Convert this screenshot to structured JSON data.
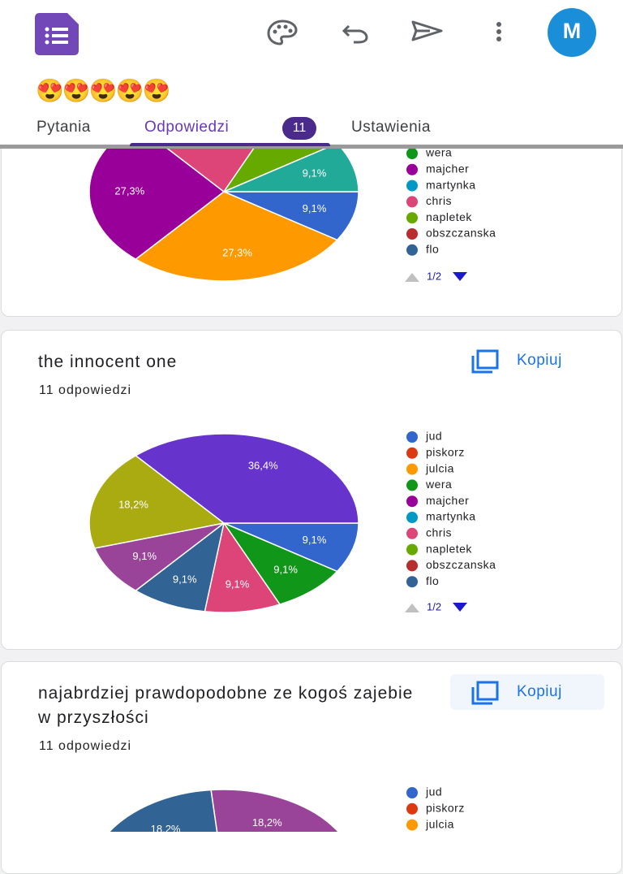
{
  "app": {
    "emoji_title": "😍😍😍😍😍",
    "avatar": "M"
  },
  "tabs": [
    {
      "label": "Pytania"
    },
    {
      "label": "Odpowiedzi",
      "badge": "11"
    },
    {
      "label": "Ustawienia"
    }
  ],
  "cards": [
    {
      "chart": {
        "type": "pie",
        "values": [
          9.1,
          27.3,
          27.3,
          18.2,
          9.1,
          9.1
        ],
        "value_labels": [
          "9,1%",
          "27,3%",
          "27,3%",
          null,
          null,
          "9,1%"
        ],
        "colors": [
          "#3366cc",
          "#ff9900",
          "#990099",
          "#dd4477",
          "#66aa00",
          "#22aa99"
        ],
        "legend": {
          "names": [
            "wera",
            "majcher",
            "martynka",
            "chris",
            "napletek",
            "obszczanska",
            "flo"
          ],
          "colors": [
            "#109618",
            "#990099",
            "#0099c6",
            "#dd4477",
            "#66aa00",
            "#b82e2e",
            "#316395"
          ]
        },
        "pager": "1/2"
      }
    },
    {
      "title": "the innocent one",
      "count": "11 odpowiedzi",
      "button": "Kopiuj",
      "chart": {
        "type": "pie",
        "values": [
          9.1,
          9.1,
          9.1,
          9.1,
          9.1,
          18.2,
          36.4
        ],
        "value_labels": [
          "9,1%",
          "9,1%",
          "9,1%",
          "9,1%",
          "9,1%",
          "18,2%",
          "36,4%"
        ],
        "colors": [
          "#3366cc",
          "#109618",
          "#dd4477",
          "#316395",
          "#994499",
          "#aaaa11",
          "#6633cc"
        ],
        "legend": {
          "names": [
            "jud",
            "piskorz",
            "julcia",
            "wera",
            "majcher",
            "martynka",
            "chris",
            "napletek",
            "obszczanska",
            "flo"
          ],
          "colors": [
            "#3366cc",
            "#dc3912",
            "#ff9900",
            "#109618",
            "#990099",
            "#0099c6",
            "#dd4477",
            "#66aa00",
            "#b82e2e",
            "#316395"
          ]
        },
        "pager": "1/2"
      }
    },
    {
      "title": "najabrdziej prawdopodobne ze kogoś zajebie w przyszłości",
      "count": "11 odpowiedzi",
      "button": "Kopiuj",
      "chart": {
        "type": "pie",
        "values": [
          18.2,
          18.2
        ],
        "value_labels": [
          "18,2%",
          "18,2%"
        ],
        "colors": [
          "#316395",
          "#994499"
        ],
        "legend": {
          "names": [
            "jud",
            "piskorz",
            "julcia"
          ],
          "colors": [
            "#3366cc",
            "#dc3912",
            "#ff9900"
          ]
        }
      }
    }
  ]
}
